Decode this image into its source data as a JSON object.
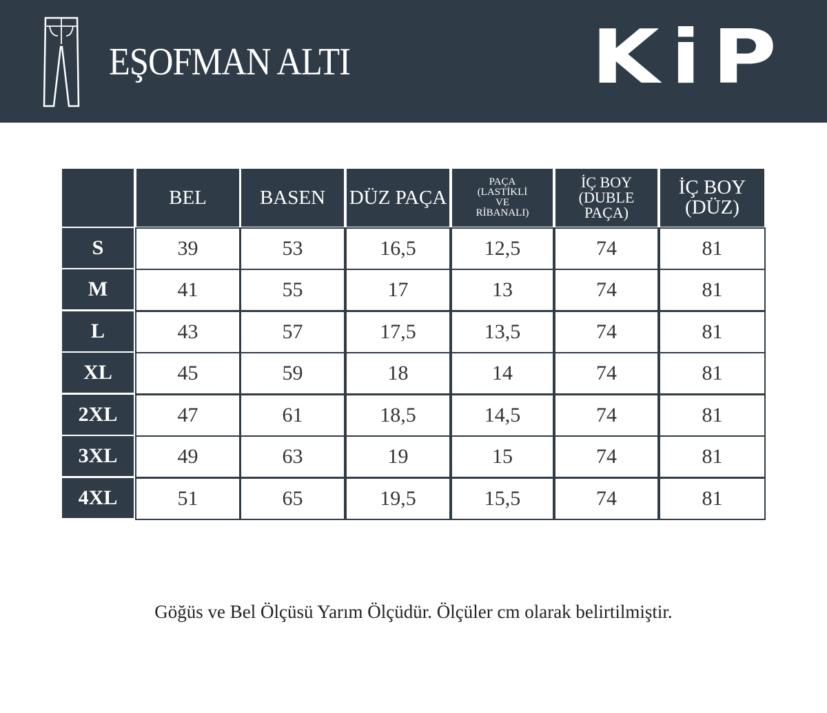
{
  "header": {
    "title": "EŞOFMAN ALTI",
    "logo": "KiP"
  },
  "table": {
    "columns": [
      [
        "BEL"
      ],
      [
        "BASEN"
      ],
      [
        "DÜZ PAÇA"
      ],
      [
        "PAÇA",
        "(LASTİKLİ",
        "VE",
        "RİBANALI)"
      ],
      [
        "İÇ BOY",
        "(DUBLE",
        "PAÇA)"
      ],
      [
        "İÇ BOY",
        "(DÜZ)"
      ]
    ],
    "sizes": [
      "S",
      "M",
      "L",
      "XL",
      "2XL",
      "3XL",
      "4XL"
    ],
    "rows": [
      [
        "39",
        "53",
        "16,5",
        "12,5",
        "74",
        "81"
      ],
      [
        "41",
        "55",
        "17",
        "13",
        "74",
        "81"
      ],
      [
        "43",
        "57",
        "17,5",
        "13,5",
        "74",
        "81"
      ],
      [
        "45",
        "59",
        "18",
        "14",
        "74",
        "81"
      ],
      [
        "47",
        "61",
        "18,5",
        "14,5",
        "74",
        "81"
      ],
      [
        "49",
        "63",
        "19",
        "15",
        "74",
        "81"
      ],
      [
        "51",
        "65",
        "19,5",
        "15,5",
        "74",
        "81"
      ]
    ]
  },
  "note": "Göğüs ve Bel Ölçüsü Yarım Ölçüdür. Ölçüler cm olarak belirtilmiştir."
}
